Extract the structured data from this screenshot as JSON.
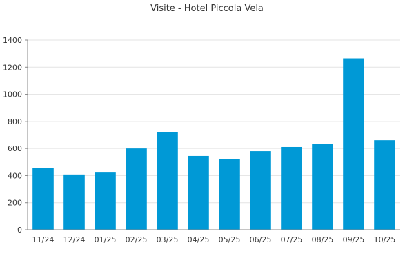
{
  "chart_data": {
    "type": "bar",
    "title": "Visite - Hotel Piccola Vela",
    "xlabel": "",
    "ylabel": "",
    "categories": [
      "11/24",
      "12/24",
      "01/25",
      "02/25",
      "03/25",
      "04/25",
      "05/25",
      "06/25",
      "07/25",
      "08/25",
      "09/25",
      "10/25"
    ],
    "series": [
      {
        "values": [
          458,
          408,
          422,
          600,
          722,
          545,
          523,
          580,
          611,
          635,
          1265,
          661
        ]
      }
    ],
    "ylim": [
      0,
      1400
    ],
    "yticks": [
      0,
      200,
      400,
      600,
      800,
      1000,
      1200,
      1400
    ],
    "grid": true,
    "legend": "none",
    "bar_color": "#0099d6",
    "grid_color": "#e3e3e3",
    "axis_color": "#888888"
  }
}
